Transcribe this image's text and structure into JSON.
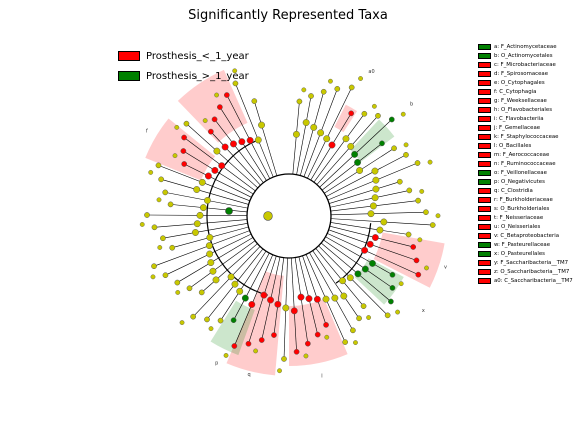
{
  "title": "Significantly Represented Taxa",
  "colors": {
    "prosthesis_lt": "#ff0000",
    "prosthesis_gt": "#008000",
    "node": "#c8c800",
    "center_bg": "#ffffff"
  },
  "groups": [
    {
      "label": "Prosthesis_<_1_year",
      "color": "#ff0000"
    },
    {
      "label": "Prosthesis_>_1_year",
      "color": "#008000"
    }
  ],
  "taxa": [
    {
      "key": "a",
      "label": "a: F_Actinomycetaceae",
      "color": "#008000"
    },
    {
      "key": "b",
      "label": "b: O_Actinomycetales",
      "color": "#008000"
    },
    {
      "key": "c",
      "label": "c: F_Microbacteriaceae",
      "color": "#ff0000"
    },
    {
      "key": "d",
      "label": "d: F_Spirosomaceae",
      "color": "#ff0000"
    },
    {
      "key": "e",
      "label": "e: O_Cytophagales",
      "color": "#ff0000"
    },
    {
      "key": "f",
      "label": "f: C_Cytophagia",
      "color": "#ff0000"
    },
    {
      "key": "g",
      "label": "g: F_Weeksellaceae",
      "color": "#ff0000"
    },
    {
      "key": "h",
      "label": "h: O_Flavobacteriales",
      "color": "#ff0000"
    },
    {
      "key": "i",
      "label": "i: C_Flavobacteriia",
      "color": "#ff0000"
    },
    {
      "key": "j",
      "label": "j: F_Gemellaceae",
      "color": "#ff0000"
    },
    {
      "key": "k",
      "label": "k: F_Staphylococcaceae",
      "color": "#ff0000"
    },
    {
      "key": "l",
      "label": "l: O_Bacillales",
      "color": "#ff0000"
    },
    {
      "key": "m",
      "label": "m: F_Aerococcaceae",
      "color": "#ff0000"
    },
    {
      "key": "n",
      "label": "n: F_Ruminococcaceae",
      "color": "#ff0000"
    },
    {
      "key": "o",
      "label": "o: F_Veillonellaceae",
      "color": "#008000"
    },
    {
      "key": "p",
      "label": "p: O_Negativicutes",
      "color": "#008000"
    },
    {
      "key": "q",
      "label": "q: C_Clostridia",
      "color": "#ff0000"
    },
    {
      "key": "r",
      "label": "r: F_Burkholderiaceae",
      "color": "#ff0000"
    },
    {
      "key": "s",
      "label": "s: O_Burkholderiales",
      "color": "#ff0000"
    },
    {
      "key": "t",
      "label": "t: F_Neisseriaceae",
      "color": "#ff0000"
    },
    {
      "key": "u",
      "label": "u: O_Neisseriales",
      "color": "#ff0000"
    },
    {
      "key": "v",
      "label": "v: C_Betaproteobacteria",
      "color": "#ff0000"
    },
    {
      "key": "w",
      "label": "w: F_Pasteurellaceae",
      "color": "#008000"
    },
    {
      "key": "x",
      "label": "x: O_Pasteurellales",
      "color": "#008000"
    },
    {
      "key": "y",
      "label": "y: F_Saccharibacteria__TM7",
      "color": "#ff0000"
    },
    {
      "key": "z",
      "label": "z: O_Saccharibacteria__TM7",
      "color": "#ff0000"
    },
    {
      "key": "a0",
      "label": "a0: C_Saccharibacteria__TM7",
      "color": "#ff0000"
    }
  ],
  "sector_labels": [
    "a",
    "b",
    "c",
    "d",
    "e",
    "f",
    "g",
    "h",
    "i",
    "j",
    "k",
    "l",
    "m",
    "n",
    "o",
    "p",
    "q",
    "r",
    "s",
    "t",
    "u",
    "v",
    "w",
    "x",
    "y",
    "z",
    "a0"
  ],
  "side_label": "a0: C_Saccharibacteria__TM7",
  "clades": [
    {
      "key": "q",
      "group": 0,
      "a0": 185,
      "a1": 203
    },
    {
      "key": "p",
      "group": 1,
      "a0": 200,
      "a1": 212
    },
    {
      "key": "f",
      "group": 0,
      "a0": 292,
      "a1": 309
    },
    {
      "key": "i",
      "group": 0,
      "a0": 316,
      "a1": 336
    },
    {
      "key": "b",
      "group": 1,
      "a0": 43,
      "a1": 53
    },
    {
      "key": "v",
      "group": 0,
      "a0": 100,
      "a1": 117
    },
    {
      "key": "x",
      "group": 1,
      "a0": 118,
      "a1": 133
    },
    {
      "key": "l",
      "group": 0,
      "a0": 157,
      "a1": 180
    },
    {
      "key": "a0",
      "group": 0,
      "a0": 27,
      "a1": 33
    }
  ]
}
